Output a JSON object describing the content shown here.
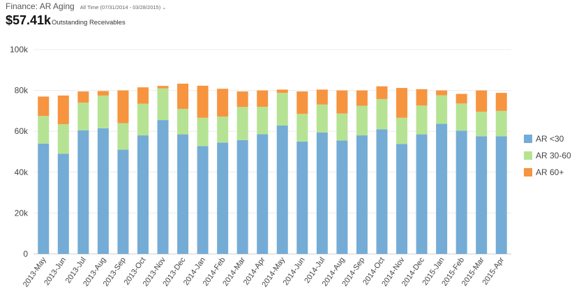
{
  "header": {
    "title": "Finance: AR Aging",
    "range": "All Time (07/31/2014 - 03/28/2015)",
    "kpi_value": "$57.41k",
    "kpi_label": "Outstanding Receivables"
  },
  "chart_data": {
    "type": "bar",
    "stacked": true,
    "title": "",
    "xlabel": "",
    "ylabel": "",
    "ylim": [
      0,
      100000
    ],
    "yticks": [
      0,
      20000,
      40000,
      60000,
      80000,
      100000
    ],
    "ytick_labels": [
      "0",
      "20k",
      "40k",
      "60k",
      "80k",
      "100k"
    ],
    "grid": true,
    "legend_position": "right",
    "categories": [
      "2013-May",
      "2013-Jun",
      "2013-Jul",
      "2013-Aug",
      "2013-Sep",
      "2013-Oct",
      "2013-Nov",
      "2013-Dec",
      "2014-Jan",
      "2014-Feb",
      "2014-Mar",
      "2014-Apr",
      "2014-May",
      "2014-Jun",
      "2014-Jul",
      "2014-Aug",
      "2014-Sep",
      "2014-Oct",
      "2014-Nov",
      "2014-Dec",
      "2015-Jan",
      "2015-Feb",
      "2015-Mar",
      "2015-Apr"
    ],
    "series": [
      {
        "name": "AR <30",
        "color": "#74acd6",
        "values": [
          54000,
          49000,
          60500,
          61500,
          51000,
          58000,
          65500,
          58500,
          52800,
          54500,
          55700,
          58600,
          62800,
          55000,
          59400,
          55500,
          58000,
          61000,
          53800,
          58500,
          63700,
          60300,
          57600,
          57600
        ]
      },
      {
        "name": "AR 30-60",
        "color": "#b6e393",
        "values": [
          13500,
          14500,
          13500,
          16000,
          13000,
          15500,
          15500,
          12500,
          13800,
          12700,
          16200,
          13400,
          16000,
          13500,
          13700,
          13200,
          14500,
          14800,
          12800,
          14100,
          13900,
          13300,
          12000,
          12400
        ]
      },
      {
        "name": "AR 60+",
        "color": "#f7943f",
        "values": [
          9500,
          14000,
          5500,
          2200,
          16000,
          8000,
          1200,
          12300,
          15700,
          13600,
          7600,
          8000,
          1600,
          11000,
          7300,
          11300,
          7500,
          6200,
          14600,
          8000,
          2400,
          4700,
          10400,
          8800
        ]
      }
    ]
  }
}
